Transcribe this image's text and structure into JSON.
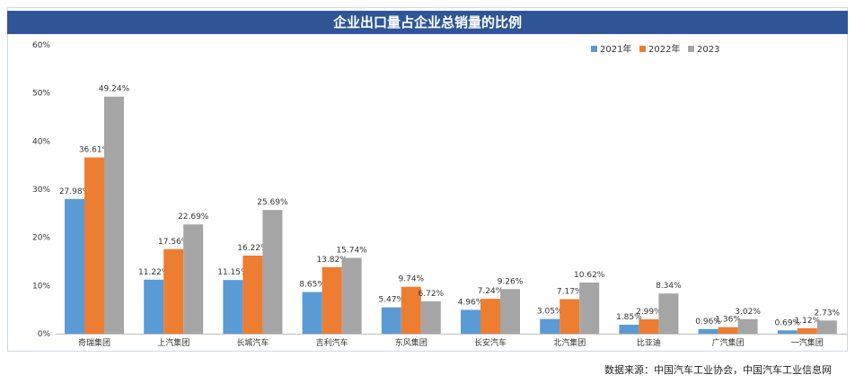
{
  "source_note": "数据来源：中国汽车工业协会，中国汽车工业信息网",
  "chart_data": {
    "type": "bar",
    "title": "企业出口量占企业总销量的比例",
    "categories": [
      "奇瑞集团",
      "上汽集团",
      "长城汽车",
      "吉利汽车",
      "东风集团",
      "长安汽车",
      "北汽集团",
      "比亚迪",
      "广汽集团",
      "一汽集团"
    ],
    "series": [
      {
        "name": "2021年",
        "color": "#5b9bd5",
        "values": [
          27.98,
          11.22,
          11.15,
          8.65,
          5.47,
          4.96,
          3.05,
          1.85,
          0.96,
          0.69
        ],
        "labels": [
          "27.98%",
          "11.22%",
          "11.15%",
          "8.65%",
          "5.47%",
          "4.96%",
          "3.05%",
          "1.85%",
          "0.96%",
          "0.69%"
        ]
      },
      {
        "name": "2022年",
        "color": "#ed7d31",
        "values": [
          36.61,
          17.56,
          16.22,
          13.82,
          9.74,
          7.24,
          7.17,
          2.99,
          1.36,
          1.12
        ],
        "labels": [
          "36.61%",
          "17.56%",
          "16.22%",
          "13.82%",
          "9.74%",
          "7.24%",
          "7.17%",
          "2.99%",
          "1.36%",
          "1.12%"
        ]
      },
      {
        "name": "2023",
        "color": "#a5a5a5",
        "values": [
          49.24,
          22.69,
          25.69,
          15.74,
          6.72,
          9.26,
          10.62,
          8.34,
          3.02,
          2.73
        ],
        "labels": [
          "49.24%",
          "22.69%",
          "25.69%",
          "15.74%",
          "6.72%",
          "9.26%",
          "10.62%",
          "8.34%",
          "3.02%",
          "2.73%"
        ]
      }
    ],
    "ylim": [
      0,
      60
    ],
    "yticks": [
      "0%",
      "10%",
      "20%",
      "30%",
      "40%",
      "50%",
      "60%"
    ],
    "ytick_values": [
      0,
      10,
      20,
      30,
      40,
      50,
      60
    ],
    "legend_position": "top-right"
  }
}
